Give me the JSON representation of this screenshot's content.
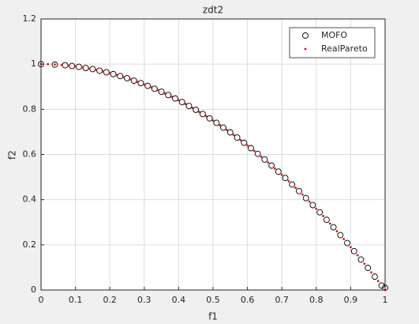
{
  "chart_data": {
    "type": "scatter",
    "title": "zdt2",
    "x_label": "f1",
    "y_label": "f2",
    "xlim": [
      0,
      1
    ],
    "ylim": [
      0,
      1.2
    ],
    "xticks": [
      0,
      0.1,
      0.2,
      0.3,
      0.4,
      0.5,
      0.6,
      0.7,
      0.8,
      0.9,
      1
    ],
    "yticks": [
      0,
      0.2,
      0.4,
      0.6,
      0.8,
      1,
      1.2
    ],
    "grid": true,
    "legend": "northeast",
    "series": [
      {
        "name": "MOFO",
        "color": "#000000",
        "marker": "o",
        "x": [
          0,
          0.04,
          0.07,
          0.09,
          0.11,
          0.13,
          0.15,
          0.17,
          0.19,
          0.21,
          0.23,
          0.25,
          0.27,
          0.29,
          0.31,
          0.33,
          0.35,
          0.37,
          0.39,
          0.41,
          0.43,
          0.45,
          0.47,
          0.49,
          0.51,
          0.53,
          0.55,
          0.57,
          0.59,
          0.61,
          0.63,
          0.65,
          0.67,
          0.69,
          0.71,
          0.73,
          0.75,
          0.77,
          0.79,
          0.81,
          0.83,
          0.85,
          0.87,
          0.89,
          0.91,
          0.93,
          0.95,
          0.97,
          0.99,
          1
        ],
        "values": [
          1,
          0.998,
          0.995,
          0.992,
          0.988,
          0.983,
          0.978,
          0.971,
          0.964,
          0.956,
          0.947,
          0.938,
          0.927,
          0.916,
          0.904,
          0.891,
          0.878,
          0.863,
          0.848,
          0.832,
          0.815,
          0.798,
          0.779,
          0.76,
          0.74,
          0.719,
          0.698,
          0.675,
          0.652,
          0.628,
          0.603,
          0.578,
          0.551,
          0.524,
          0.496,
          0.467,
          0.438,
          0.407,
          0.376,
          0.344,
          0.311,
          0.278,
          0.243,
          0.208,
          0.172,
          0.135,
          0.098,
          0.059,
          0.02,
          0.01
        ]
      },
      {
        "name": "RealPareto",
        "color": "#ff0000",
        "marker": ".",
        "x": [
          0,
          0.02,
          0.04,
          0.06,
          0.08,
          0.1,
          0.12,
          0.14,
          0.16,
          0.18,
          0.2,
          0.22,
          0.24,
          0.26,
          0.28,
          0.3,
          0.32,
          0.34,
          0.36,
          0.38,
          0.4,
          0.42,
          0.44,
          0.46,
          0.48,
          0.5,
          0.52,
          0.54,
          0.56,
          0.58,
          0.6,
          0.62,
          0.64,
          0.66,
          0.68,
          0.7,
          0.72,
          0.74,
          0.76,
          0.78,
          0.8,
          0.82,
          0.84,
          0.86,
          0.88,
          0.9,
          0.92,
          0.94,
          0.96,
          0.98,
          1
        ],
        "values": [
          1,
          0.9996,
          0.9984,
          0.9964,
          0.9936,
          0.99,
          0.9856,
          0.9804,
          0.9744,
          0.9676,
          0.96,
          0.9516,
          0.9424,
          0.9324,
          0.9216,
          0.91,
          0.8976,
          0.8844,
          0.8704,
          0.8556,
          0.84,
          0.8236,
          0.8064,
          0.7884,
          0.7696,
          0.75,
          0.7296,
          0.7084,
          0.6864,
          0.6636,
          0.64,
          0.6156,
          0.5904,
          0.5644,
          0.5376,
          0.51,
          0.4816,
          0.4524,
          0.4224,
          0.3916,
          0.36,
          0.3276,
          0.2944,
          0.2604,
          0.2256,
          0.19,
          0.1536,
          0.1164,
          0.0784,
          0.0396,
          0
        ]
      }
    ]
  }
}
